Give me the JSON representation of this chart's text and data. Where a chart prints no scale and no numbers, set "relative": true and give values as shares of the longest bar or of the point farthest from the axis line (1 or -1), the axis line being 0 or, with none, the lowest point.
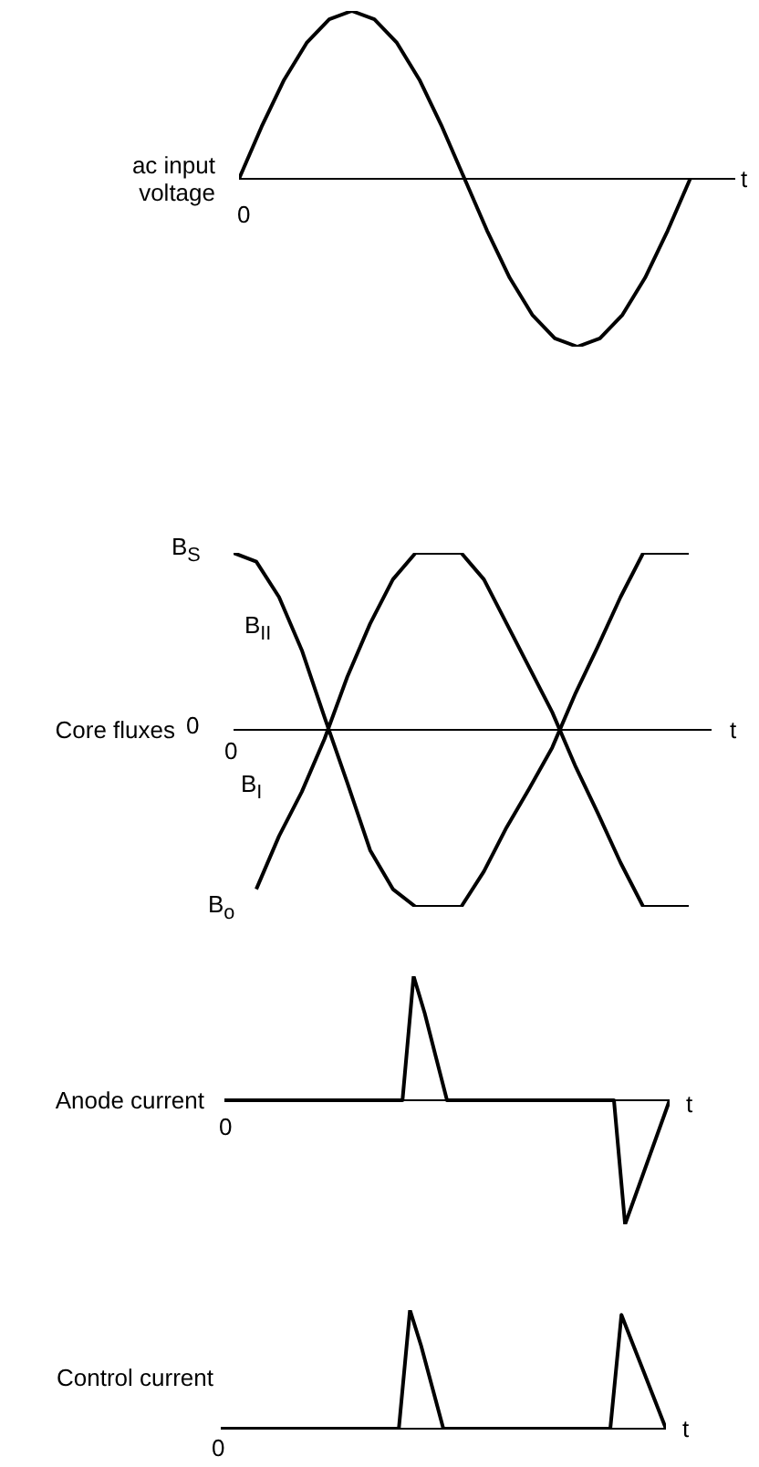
{
  "chart_data": [
    {
      "type": "line",
      "relative": true,
      "ylabel": "ac input voltage",
      "xlabel": "t",
      "tick_labels": false,
      "marker": "none",
      "line_style": "solid",
      "annotations": [
        "0"
      ],
      "categories": [
        null,
        null,
        null,
        null,
        null,
        null,
        null,
        null,
        null,
        null,
        null,
        null,
        null,
        null,
        null,
        null,
        null,
        null,
        null,
        null,
        null,
        null,
        null
      ],
      "series": [
        {
          "color": "#000000",
          "values": [
            0,
            0.31,
            0.59,
            0.81,
            0.95,
            1,
            0.95,
            0.81,
            0.59,
            0.31,
            0,
            -0.31,
            -0.59,
            -0.81,
            -0.95,
            -1,
            -0.95,
            -0.81,
            -0.59,
            -0.31,
            0,
            null,
            null
          ]
        }
      ]
    },
    {
      "type": "line",
      "relative": true,
      "ylabel": "Core fluxes",
      "xlabel": "t",
      "tick_labels": false,
      "marker": "none",
      "line_style": "solid",
      "annotations": [
        "0",
        "0",
        "B$_{S}$",
        "B$_{o}$"
      ],
      "categories": [
        null,
        null,
        null,
        null,
        null,
        null,
        null,
        null,
        null,
        null,
        null,
        null,
        null,
        null,
        null,
        null,
        null,
        null,
        null,
        null,
        null,
        null
      ],
      "series": [
        {
          "name": "B$_{II}$",
          "color": "#000000",
          "values": [
            1,
            0.95,
            0.75,
            0.45,
            0.07,
            -0.3,
            -0.68,
            -0.9,
            -1,
            -1,
            -1,
            -0.8,
            -0.55,
            -0.33,
            -0.1,
            0.2,
            0.47,
            0.75,
            1,
            1,
            1,
            null
          ]
        },
        {
          "name": "B$_{I}$",
          "color": "#000000",
          "values": [
            null,
            -0.9,
            -0.6,
            -0.35,
            -0.05,
            0.3,
            0.6,
            0.85,
            1,
            1,
            1,
            0.85,
            0.6,
            0.35,
            0.1,
            -0.2,
            -0.47,
            -0.75,
            -1,
            -1,
            -1,
            null
          ]
        }
      ]
    },
    {
      "type": "line",
      "relative": true,
      "ylabel": "Anode current",
      "xlabel": "t",
      "tick_labels": false,
      "marker": "none",
      "line_style": "solid",
      "annotations": [
        "0"
      ],
      "categories": [
        null,
        null,
        null,
        null,
        null,
        null,
        null,
        null,
        null,
        null,
        null,
        null,
        null,
        null,
        null,
        null,
        null,
        null,
        null,
        null,
        null,
        null,
        null,
        null,
        null,
        null,
        null,
        null,
        null,
        null,
        null,
        null,
        null,
        null,
        null,
        null,
        null,
        null,
        null,
        null,
        null
      ],
      "series": [
        {
          "color": "#000000",
          "values": [
            0,
            0,
            0,
            0,
            0,
            0,
            0,
            0,
            0,
            0,
            0,
            0,
            0,
            0,
            0,
            0,
            0,
            1,
            0.7,
            0.35,
            0,
            0,
            0,
            0,
            0,
            0,
            0,
            0,
            0,
            0,
            0,
            0,
            0,
            0,
            0,
            0,
            -1,
            -0.75,
            -0.5,
            -0.25,
            0
          ]
        }
      ]
    },
    {
      "type": "line",
      "relative": true,
      "ylabel": "Control current",
      "xlabel": "t",
      "tick_labels": false,
      "marker": "none",
      "line_style": "solid",
      "annotations": [
        "0"
      ],
      "categories": [
        null,
        null,
        null,
        null,
        null,
        null,
        null,
        null,
        null,
        null,
        null,
        null,
        null,
        null,
        null,
        null,
        null,
        null,
        null,
        null,
        null,
        null,
        null,
        null,
        null,
        null,
        null,
        null,
        null,
        null,
        null,
        null,
        null,
        null,
        null,
        null,
        null,
        null,
        null,
        null,
        null
      ],
      "series": [
        {
          "color": "#000000",
          "values": [
            0,
            0,
            0,
            0,
            0,
            0,
            0,
            0,
            0,
            0,
            0,
            0,
            0,
            0,
            0,
            0,
            0,
            1,
            0.7,
            0.35,
            0,
            0,
            0,
            0,
            0,
            0,
            0,
            0,
            0,
            0,
            0,
            0,
            0,
            0,
            0,
            0,
            0.96,
            0.72,
            0.48,
            0.24,
            0
          ]
        }
      ]
    }
  ]
}
